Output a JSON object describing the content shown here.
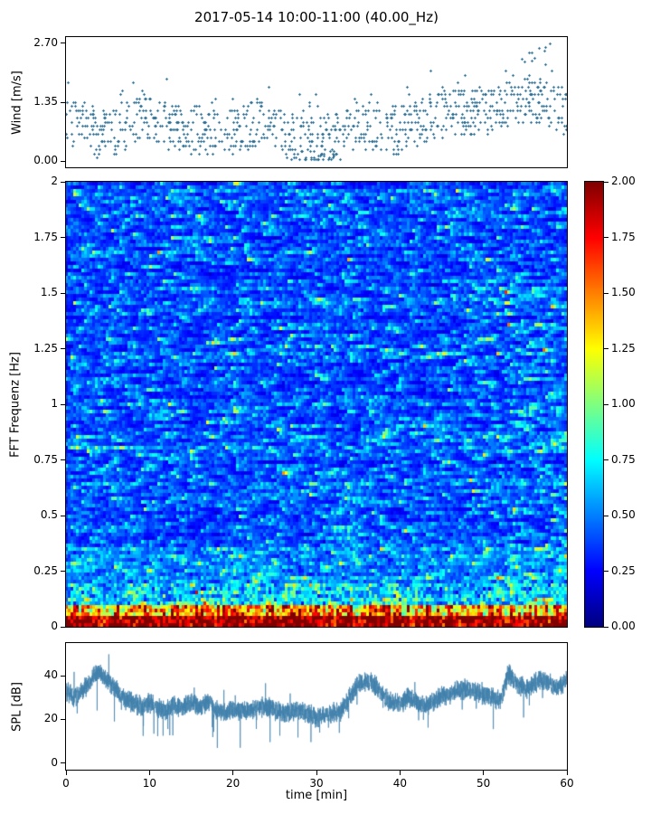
{
  "title": "2017-05-14 10:00-11:00 (40.00_Hz)",
  "background": "#ffffff",
  "chart_data": [
    {
      "type": "scatter",
      "name": "wind",
      "ylabel": "Wind [m/s]",
      "xlim": [
        0,
        60
      ],
      "ylim": [
        0,
        2.7
      ],
      "yticks": [
        {
          "value": 0,
          "label": "0.00"
        },
        {
          "value": 1.35,
          "label": "1.35"
        },
        {
          "value": 2.7,
          "label": "2.70"
        }
      ],
      "marker": "plus",
      "marker_color": "#2d6e90",
      "seed": 42,
      "quantize_step": 0.09,
      "spread": 1.1,
      "mean_profile": [
        [
          0,
          0.8
        ],
        [
          5,
          0.75
        ],
        [
          9,
          1.0
        ],
        [
          12,
          0.7
        ],
        [
          16,
          0.85
        ],
        [
          20,
          0.7
        ],
        [
          24,
          0.8
        ],
        [
          28,
          0.55
        ],
        [
          32,
          0.6
        ],
        [
          36,
          0.7
        ],
        [
          40,
          0.85
        ],
        [
          44,
          1.0
        ],
        [
          48,
          1.05
        ],
        [
          52,
          1.3
        ],
        [
          55,
          1.55
        ],
        [
          57,
          1.3
        ],
        [
          60,
          1.0
        ]
      ],
      "description": "Quantized wind speed samples 0-2.7 m/s; denser and stronger after t=40 min, maxima near 2.7 m/s around t=56 min"
    },
    {
      "type": "heatmap",
      "name": "spectrogram",
      "ylabel": "FFT Frequenz [Hz]",
      "xlim": [
        0,
        60
      ],
      "ylim": [
        0,
        2
      ],
      "yticks": [
        {
          "value": 2,
          "label": "2"
        },
        {
          "value": 1.75,
          "label": "1.75"
        },
        {
          "value": 1.5,
          "label": "1.5"
        },
        {
          "value": 1.25,
          "label": "1.25"
        },
        {
          "value": 1,
          "label": "1"
        },
        {
          "value": 0.75,
          "label": "0.75"
        },
        {
          "value": 0.5,
          "label": "0.5"
        },
        {
          "value": 0.25,
          "label": "0.25"
        },
        {
          "value": 0,
          "label": "0"
        }
      ],
      "colormap": "jet",
      "colorbar": {
        "lim": [
          0,
          2
        ],
        "ticks": [
          {
            "value": 2,
            "label": "2.00"
          },
          {
            "value": 1.75,
            "label": "1.75"
          },
          {
            "value": 1.5,
            "label": "1.50"
          },
          {
            "value": 1.25,
            "label": "1.25"
          },
          {
            "value": 1,
            "label": "1.00"
          },
          {
            "value": 0.75,
            "label": "0.75"
          },
          {
            "value": 0.5,
            "label": "0.50"
          },
          {
            "value": 0.25,
            "label": "0.25"
          },
          {
            "value": 0,
            "label": "0.00"
          }
        ]
      },
      "grid_cols": 185,
      "grid_rows": 123,
      "seed": 7,
      "base_level": 0.16,
      "tail_scale": 0.27,
      "description": "FFT spectrogram, mostly 0.2-0.5 (blue) with sparse green/yellow streaks; strong 1.3-2.0 (orange/dark red) band below ~0.1 Hz, elevated values below ~0.35 Hz"
    },
    {
      "type": "line",
      "name": "spl",
      "ylabel": "SPL [dB]",
      "xlabel": "time [min]",
      "xlim": [
        0,
        60
      ],
      "xticks": [
        {
          "value": 0,
          "label": "0"
        },
        {
          "value": 10,
          "label": "10"
        },
        {
          "value": 20,
          "label": "20"
        },
        {
          "value": 30,
          "label": "30"
        },
        {
          "value": 40,
          "label": "40"
        },
        {
          "value": 50,
          "label": "50"
        },
        {
          "value": 60,
          "label": "60"
        }
      ],
      "yticks": [
        {
          "value": 40,
          "label": "40"
        },
        {
          "value": 20,
          "label": "20"
        },
        {
          "value": 0,
          "label": "0"
        }
      ],
      "line_color": "#4080ab",
      "seed": 99,
      "noise_db": 5,
      "envelope": [
        [
          0,
          33
        ],
        [
          1,
          30
        ],
        [
          2,
          33
        ],
        [
          3,
          38
        ],
        [
          4,
          42
        ],
        [
          5,
          38
        ],
        [
          6,
          34
        ],
        [
          7,
          30
        ],
        [
          8,
          28
        ],
        [
          9,
          26
        ],
        [
          10,
          28
        ],
        [
          11,
          25
        ],
        [
          12,
          24
        ],
        [
          13,
          27
        ],
        [
          14,
          25
        ],
        [
          15,
          28
        ],
        [
          16,
          26
        ],
        [
          17,
          28
        ],
        [
          18,
          24
        ],
        [
          19,
          23
        ],
        [
          20,
          25
        ],
        [
          22,
          24
        ],
        [
          24,
          26
        ],
        [
          26,
          23
        ],
        [
          28,
          24
        ],
        [
          30,
          21
        ],
        [
          32,
          23
        ],
        [
          33,
          25
        ],
        [
          34,
          30
        ],
        [
          35,
          36
        ],
        [
          36,
          38
        ],
        [
          37,
          36
        ],
        [
          38,
          30
        ],
        [
          39,
          28
        ],
        [
          40,
          27
        ],
        [
          41,
          30
        ],
        [
          42,
          28
        ],
        [
          43,
          26
        ],
        [
          44,
          28
        ],
        [
          45,
          31
        ],
        [
          46,
          32
        ],
        [
          47,
          33
        ],
        [
          48,
          34
        ],
        [
          49,
          33
        ],
        [
          50,
          31
        ],
        [
          51,
          30
        ],
        [
          52,
          29
        ],
        [
          53,
          41
        ],
        [
          54,
          36
        ],
        [
          55,
          34
        ],
        [
          56,
          36
        ],
        [
          57,
          38
        ],
        [
          58,
          36
        ],
        [
          59,
          35
        ],
        [
          60,
          38
        ]
      ],
      "description": "Noisy SPL trace ~20-45 dB band; peaks near t=4, t=35-37, t=53-60; quiet 20-33 min"
    }
  ]
}
